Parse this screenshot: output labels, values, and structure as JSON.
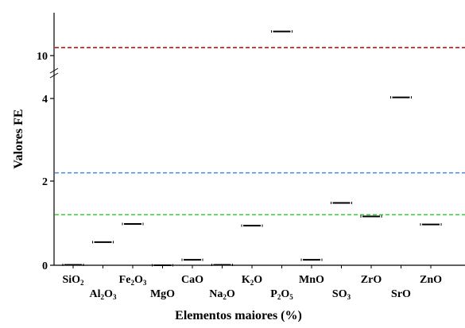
{
  "chart_data": {
    "type": "scatter",
    "xlabel": "Elementos maiores (%)",
    "ylabel": "Valores FE",
    "y_scale": "piecewise (broken axis)",
    "y_ticks": [
      "0",
      "2",
      "4",
      "10"
    ],
    "categories": [
      {
        "base": "SiO",
        "sub": "2",
        "label": "SiO2"
      },
      {
        "base": "Al",
        "sub": "2",
        "mid": "O",
        "sub2": "3",
        "label": "Al2O3"
      },
      {
        "base": "Fe",
        "sub": "2",
        "mid": "O",
        "sub2": "3",
        "label": "Fe2O3"
      },
      {
        "base": "MgO",
        "label": "MgO"
      },
      {
        "base": "CaO",
        "label": "CaO"
      },
      {
        "base": "Na",
        "sub": "2",
        "mid": "O",
        "label": "Na2O"
      },
      {
        "base": "K",
        "sub": "2",
        "mid": "O",
        "label": "K2O"
      },
      {
        "base": "P",
        "sub": "2",
        "mid": "O",
        "sub2": "5",
        "label": "P2O5"
      },
      {
        "base": "MnO",
        "label": "MnO"
      },
      {
        "base": "SO",
        "sub": "3",
        "label": "SO3"
      },
      {
        "base": "ZrO",
        "label": "ZrO"
      },
      {
        "base": "SrO",
        "label": "SrO"
      },
      {
        "base": "ZnO",
        "label": "ZnO"
      }
    ],
    "values": [
      0.01,
      0.55,
      0.98,
      0.0,
      0.13,
      0.01,
      0.94,
      11.2,
      0.13,
      1.48,
      1.16,
      4.15,
      0.97
    ],
    "reference_lines": [
      {
        "value": 10.4,
        "color": "#c00000"
      },
      {
        "value": 2.2,
        "color": "#4a86e8"
      },
      {
        "value": 1.2,
        "color": "#33cc33"
      }
    ],
    "marker_color": "#000000",
    "grid": false
  }
}
